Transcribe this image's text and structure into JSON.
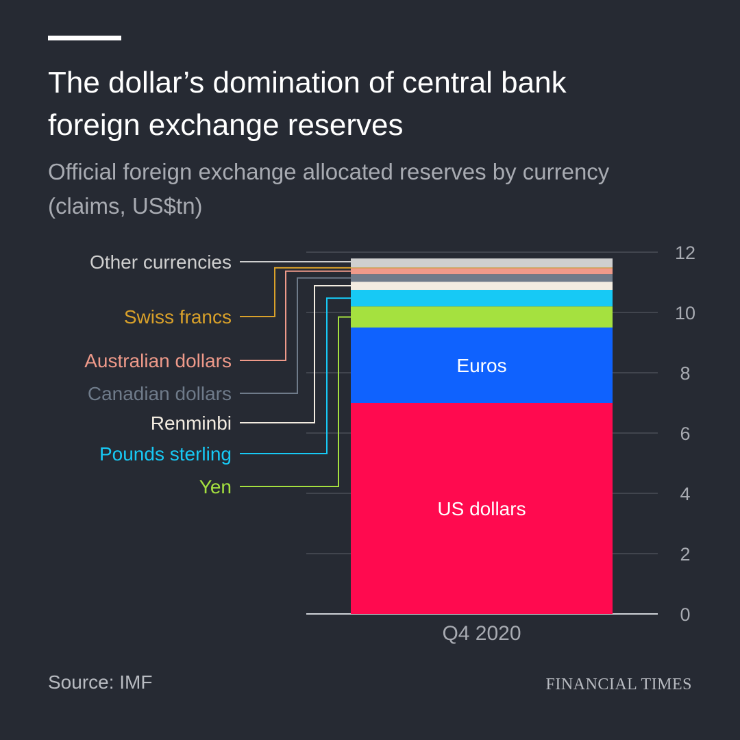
{
  "header": {
    "title": "The dollar’s domination of central bank foreign exchange reserves",
    "subtitle": "Official foreign exchange allocated reserves by currency (claims, US$tn)"
  },
  "footer": {
    "source": "Source: IMF",
    "brand": "FINANCIAL TIMES"
  },
  "colors": {
    "background": "#262a33",
    "gridline": "#4a4e57",
    "tick_label": "#a8abb2"
  },
  "chart_data": {
    "type": "bar",
    "stacked": true,
    "categories": [
      "Q4 2020"
    ],
    "ylim": [
      0,
      12
    ],
    "yticks": [
      0,
      2,
      4,
      6,
      8,
      10,
      12
    ],
    "grid": true,
    "series": [
      {
        "name": "US dollars",
        "values": [
          7.0
        ],
        "color": "#ff0a4f",
        "label_style": "inside"
      },
      {
        "name": "Euros",
        "values": [
          2.5
        ],
        "color": "#0f62fe",
        "label_style": "inside"
      },
      {
        "name": "Yen",
        "values": [
          0.7
        ],
        "color": "#a5e13f",
        "label_style": "leader"
      },
      {
        "name": "Pounds sterling",
        "values": [
          0.55
        ],
        "color": "#17c9f5",
        "label_style": "leader"
      },
      {
        "name": "Renminbi",
        "values": [
          0.27
        ],
        "color": "#f3ece1",
        "label_style": "leader"
      },
      {
        "name": "Canadian dollars",
        "values": [
          0.25
        ],
        "color": "#6f7b8a",
        "label_style": "leader"
      },
      {
        "name": "Australian dollars",
        "values": [
          0.2
        ],
        "color": "#ef9a8a",
        "label_style": "leader"
      },
      {
        "name": "Swiss francs",
        "values": [
          0.02
        ],
        "color": "#d9a12a",
        "label_style": "leader"
      },
      {
        "name": "Other currencies",
        "values": [
          0.3
        ],
        "color": "#cfcfcf",
        "label_style": "leader"
      }
    ]
  }
}
